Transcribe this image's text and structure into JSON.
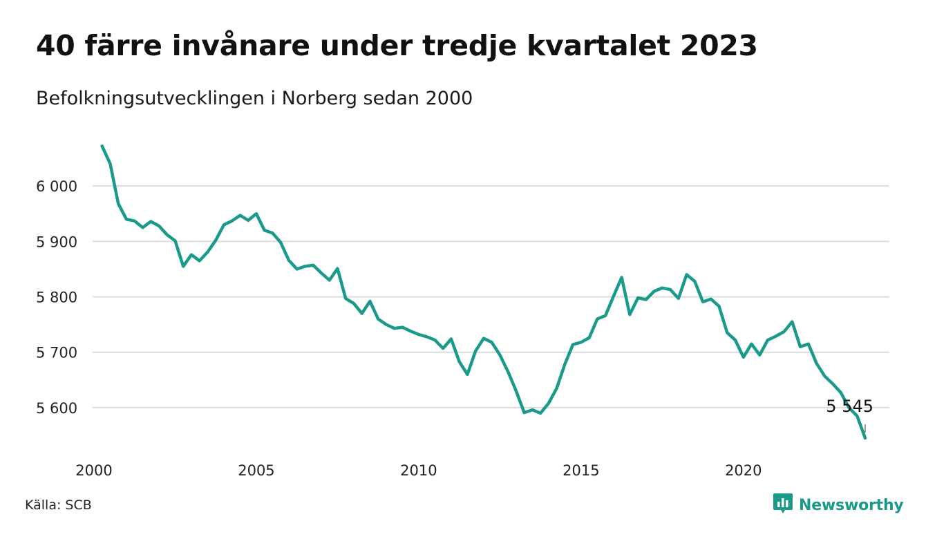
{
  "header": {
    "title": "40 färre invånare under tredje kvartalet 2023",
    "subtitle": "Befolkningsutvecklingen i Norberg sedan 2000"
  },
  "footer": {
    "source": "Källa: SCB",
    "brand": "Newsworthy",
    "brand_icon": "newsworthy-logo-icon"
  },
  "colors": {
    "line": "#1a9a8a",
    "grid": "#dcdcdc",
    "brand": "#1a9a8a"
  },
  "chart_data": {
    "type": "line",
    "title": "40 färre invånare under tredje kvartalet 2023",
    "subtitle": "Befolkningsutvecklingen i Norberg sedan 2000",
    "xlabel": "",
    "ylabel": "",
    "grid": true,
    "legend": "none",
    "xlim": [
      2000,
      2023.75
    ],
    "ylim": [
      5545,
      6075
    ],
    "x_ticks": [
      2000,
      2005,
      2010,
      2015,
      2020
    ],
    "x_tick_labels": [
      "2000",
      "2005",
      "2010",
      "2015",
      "2020"
    ],
    "y_ticks": [
      5600,
      5700,
      5800,
      5900,
      6000
    ],
    "y_tick_labels": [
      "5 600",
      "5 700",
      "5 800",
      "5 900",
      "6 000"
    ],
    "end_label": "5 545",
    "series": [
      {
        "x": [
          2000.25,
          2000.5,
          2000.75,
          2001,
          2001.25,
          2001.5,
          2001.75,
          2002,
          2002.25,
          2002.5,
          2002.75,
          2003,
          2003.25,
          2003.5,
          2003.75,
          2004,
          2004.25,
          2004.5,
          2004.75,
          2005,
          2005.25,
          2005.5,
          2005.75,
          2006,
          2006.25,
          2006.5,
          2006.75,
          2007,
          2007.25,
          2007.5,
          2007.75,
          2008,
          2008.25,
          2008.5,
          2008.75,
          2009,
          2009.25,
          2009.5,
          2009.75,
          2010,
          2010.25,
          2010.5,
          2010.75,
          2011,
          2011.25,
          2011.5,
          2011.75,
          2012,
          2012.25,
          2012.5,
          2012.75,
          2013,
          2013.25,
          2013.5,
          2013.75,
          2014,
          2014.25,
          2014.5,
          2014.75,
          2015,
          2015.25,
          2015.5,
          2015.75,
          2016,
          2016.25,
          2016.5,
          2016.75,
          2017,
          2017.25,
          2017.5,
          2017.75,
          2018,
          2018.25,
          2018.5,
          2018.75,
          2019,
          2019.25,
          2019.5,
          2019.75,
          2020,
          2020.25,
          2020.5,
          2020.75,
          2021,
          2021.25,
          2021.5,
          2021.75,
          2022,
          2022.25,
          2022.5,
          2022.75,
          2023,
          2023.25,
          2023.5,
          2023.75
        ],
        "values": [
          6072,
          6040,
          5968,
          5940,
          5937,
          5925,
          5936,
          5928,
          5912,
          5901,
          5855,
          5876,
          5865,
          5881,
          5902,
          5930,
          5937,
          5947,
          5938,
          5950,
          5920,
          5915,
          5898,
          5866,
          5850,
          5855,
          5857,
          5843,
          5830,
          5851,
          5797,
          5788,
          5770,
          5792,
          5760,
          5750,
          5743,
          5745,
          5738,
          5732,
          5728,
          5722,
          5707,
          5724,
          5683,
          5660,
          5702,
          5725,
          5718,
          5695,
          5665,
          5630,
          5591,
          5596,
          5590,
          5608,
          5635,
          5678,
          5714,
          5718,
          5726,
          5760,
          5766,
          5801,
          5835,
          5768,
          5798,
          5795,
          5810,
          5816,
          5813,
          5797,
          5840,
          5828,
          5791,
          5796,
          5783,
          5735,
          5722,
          5691,
          5715,
          5695,
          5722,
          5729,
          5737,
          5755,
          5710,
          5715,
          5680,
          5657,
          5643,
          5627,
          5600,
          5585,
          5545
        ]
      }
    ]
  }
}
